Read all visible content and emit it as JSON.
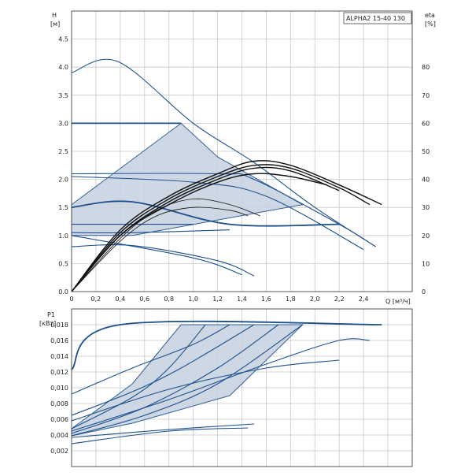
{
  "chart_data": [
    {
      "type": "line",
      "title": "ALPHA2 15-40 130",
      "ylabel": "H",
      "ylabel_unit": "[м]",
      "y2label": "eta",
      "y2label_unit": "[%]",
      "xlabel": "Q [м³/ч]",
      "xlim": [
        0,
        2.8
      ],
      "ylim": [
        0,
        5.0
      ],
      "y2lim": [
        0,
        100
      ],
      "x_ticks": [
        "0",
        "0,2",
        "0,4",
        "0,6",
        "0,8",
        "1,0",
        "1,2",
        "1,4",
        "1,6",
        "1,8",
        "2,0",
        "2,2",
        "2,4"
      ],
      "y_ticks": [
        "0.0",
        "0.5",
        "1.0",
        "1.5",
        "2.0",
        "2.5",
        "3.0",
        "3.5",
        "4.0",
        "4.5"
      ],
      "y2_ticks": [
        "0",
        "10",
        "20",
        "30",
        "40",
        "50",
        "60",
        "70",
        "80"
      ],
      "grid": true,
      "shaded_region": [
        [
          0,
          1.0
        ],
        [
          0.5,
          1.0
        ],
        [
          1.9,
          1.55
        ],
        [
          1.2,
          2.4
        ],
        [
          0.9,
          3.0
        ],
        [
          0,
          1.55
        ]
      ],
      "series": [
        {
          "values": [
            [
              0,
              3.9
            ],
            [
              0.38,
              4.1
            ],
            [
              1.0,
              3.0
            ],
            [
              1.5,
              2.3
            ],
            [
              2.0,
              1.5
            ],
            [
              2.5,
              0.8
            ]
          ]
        },
        {
          "values": [
            [
              0,
              3.0
            ],
            [
              0.9,
              3.0
            ]
          ]
        },
        {
          "values": [
            [
              0,
              2.1
            ],
            [
              1.2,
              2.1
            ],
            [
              1.5,
              2.0
            ],
            [
              2.2,
              1.2
            ],
            [
              2.5,
              0.8
            ]
          ]
        },
        {
          "values": [
            [
              0,
              2.05
            ],
            [
              1.0,
              1.95
            ],
            [
              1.6,
              1.7
            ],
            [
              2.4,
              0.75
            ]
          ]
        },
        {
          "values": [
            [
              0,
              1.5
            ],
            [
              0.5,
              1.6
            ],
            [
              1.3,
              1.2
            ],
            [
              2.2,
              1.2
            ]
          ]
        },
        {
          "values": [
            [
              0,
              1.05
            ],
            [
              0.5,
              1.05
            ],
            [
              1.3,
              1.1
            ]
          ]
        },
        {
          "values": [
            [
              0,
              0.8
            ],
            [
              0.5,
              0.82
            ],
            [
              1.2,
              0.55
            ],
            [
              1.5,
              0.28
            ]
          ]
        },
        {
          "values": [
            [
              0,
              1.0
            ],
            [
              1.0,
              0.6
            ],
            [
              1.4,
              0.3
            ]
          ]
        },
        {
          "values": [
            [
              0,
              1.2
            ],
            [
              1.0,
              1.2
            ]
          ]
        }
      ],
      "eta_series": [
        {
          "values": [
            [
              0,
              0
            ],
            [
              0.4,
              22
            ],
            [
              0.8,
              34
            ],
            [
              1.2,
              42
            ],
            [
              1.5,
              46.5
            ],
            [
              1.8,
              45
            ],
            [
              2.2,
              38
            ],
            [
              2.55,
              31
            ]
          ]
        },
        {
          "values": [
            [
              0,
              0
            ],
            [
              0.4,
              21
            ],
            [
              0.8,
              33
            ],
            [
              1.2,
              41
            ],
            [
              1.5,
              45
            ],
            [
              1.8,
              44
            ],
            [
              2.2,
              37
            ],
            [
              2.45,
              31
            ]
          ]
        },
        {
          "values": [
            [
              0,
              0
            ],
            [
              0.4,
              20
            ],
            [
              0.8,
              32
            ],
            [
              1.2,
              40
            ],
            [
              1.5,
              44
            ],
            [
              1.8,
              43
            ],
            [
              2.2,
              36
            ]
          ]
        },
        {
          "values": [
            [
              0,
              0
            ],
            [
              0.4,
              20
            ],
            [
              0.8,
              31
            ],
            [
              1.2,
              39
            ],
            [
              1.5,
              42
            ],
            [
              1.8,
              41
            ],
            [
              2.1,
              38
            ]
          ]
        },
        {
          "values": [
            [
              0,
              0
            ],
            [
              0.4,
              19
            ],
            [
              0.7,
              29
            ],
            [
              1.0,
              33
            ],
            [
              1.3,
              31
            ],
            [
              1.55,
              27
            ]
          ]
        },
        {
          "values": [
            [
              0,
              0
            ],
            [
              0.4,
              18
            ],
            [
              0.7,
              27
            ],
            [
              1.0,
              30
            ],
            [
              1.3,
              29
            ],
            [
              1.45,
              27
            ]
          ]
        }
      ]
    },
    {
      "type": "line",
      "ylabel": "P1",
      "ylabel_unit": "[кВт]",
      "xlim": [
        0,
        2.8
      ],
      "ylim": [
        0,
        0.02
      ],
      "y_ticks": [
        "0,002",
        "0,004",
        "0,006",
        "0,008",
        "0,010",
        "0,012",
        "0,014",
        "0,016",
        "0,018"
      ],
      "grid": true,
      "shaded_region": [
        [
          0,
          0.0039
        ],
        [
          0.5,
          0.0055
        ],
        [
          1.3,
          0.009
        ],
        [
          1.9,
          0.018
        ],
        [
          0.9,
          0.018
        ],
        [
          0.5,
          0.0105
        ],
        [
          0,
          0.0048
        ]
      ],
      "series": [
        {
          "values": [
            [
              0,
              0.0123
            ],
            [
              0.4,
              0.018
            ],
            [
              2.55,
              0.018
            ]
          ]
        },
        {
          "values": [
            [
              0,
              0.0092
            ],
            [
              0.5,
              0.0125
            ],
            [
              1.0,
              0.0155
            ],
            [
              1.3,
              0.018
            ]
          ]
        },
        {
          "values": [
            [
              0,
              0.0065
            ],
            [
              0.5,
              0.0095
            ],
            [
              0.9,
              0.0125
            ],
            [
              1.5,
              0.018
            ]
          ]
        },
        {
          "values": [
            [
              0,
              0.0048
            ],
            [
              0.5,
              0.0088
            ],
            [
              0.8,
              0.0125
            ],
            [
              1.1,
              0.018
            ]
          ]
        },
        {
          "values": [
            [
              0,
              0.0042
            ],
            [
              0.6,
              0.0075
            ],
            [
              1.2,
              0.0125
            ],
            [
              1.7,
              0.018
            ]
          ]
        },
        {
          "values": [
            [
              0,
              0.0039
            ],
            [
              0.6,
              0.0065
            ],
            [
              1.2,
              0.0105
            ],
            [
              1.9,
              0.018
            ]
          ]
        },
        {
          "values": [
            [
              0,
              0.0045
            ],
            [
              0.8,
              0.0085
            ],
            [
              1.6,
              0.013
            ],
            [
              2.2,
              0.016
            ],
            [
              2.45,
              0.016
            ]
          ]
        },
        {
          "values": [
            [
              0,
              0.0058
            ],
            [
              0.8,
              0.0098
            ],
            [
              1.6,
              0.0125
            ],
            [
              2.2,
              0.0135
            ]
          ]
        },
        {
          "values": [
            [
              0,
              0.0037
            ],
            [
              0.8,
              0.0047
            ],
            [
              1.5,
              0.0054
            ]
          ]
        },
        {
          "values": [
            [
              0,
              0.0029
            ],
            [
              0.8,
              0.0045
            ],
            [
              1.45,
              0.0049
            ]
          ]
        }
      ]
    }
  ]
}
